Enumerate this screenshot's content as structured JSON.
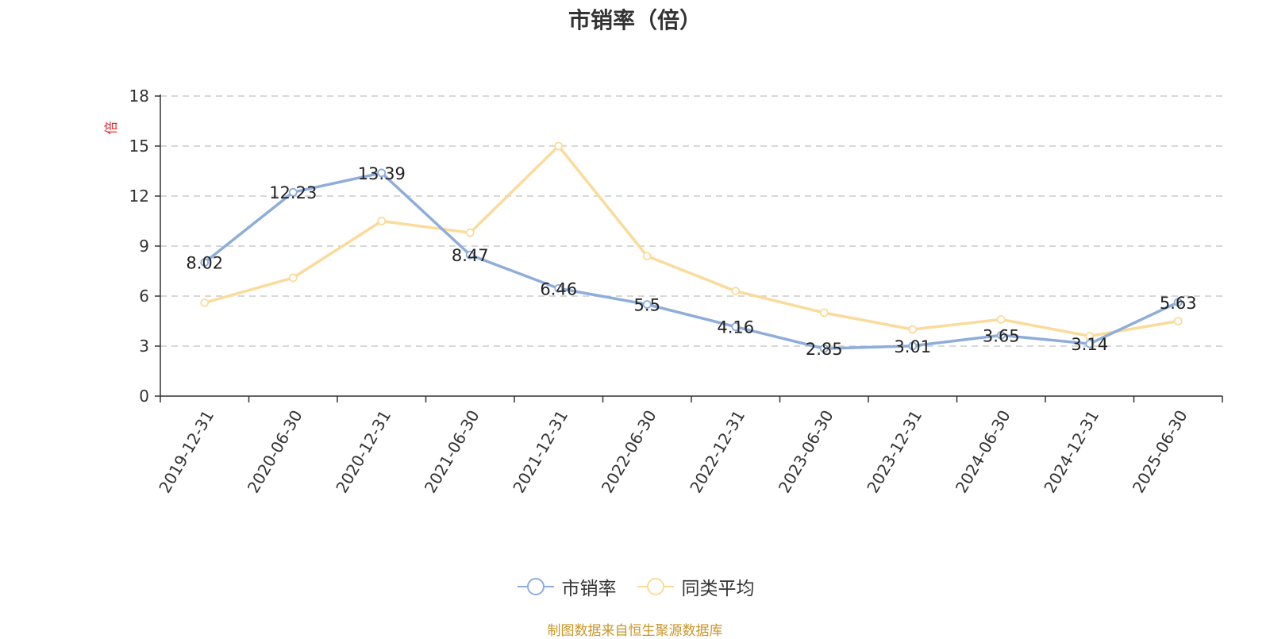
{
  "chart_data": {
    "type": "line",
    "title": "市销率（倍）",
    "ylabel": "倍",
    "ylim": [
      0,
      18
    ],
    "yticks": [
      0,
      3,
      6,
      9,
      12,
      15,
      18
    ],
    "grid": true,
    "legend_position": "bottom",
    "categories": [
      "2019-12-31",
      "2020-06-30",
      "2020-12-31",
      "2021-06-30",
      "2021-12-31",
      "2022-06-30",
      "2022-12-31",
      "2023-06-30",
      "2023-12-31",
      "2024-06-30",
      "2024-12-31",
      "2025-06-30"
    ],
    "series": [
      {
        "name": "市销率",
        "color": "#8eadd9",
        "values": [
          8.02,
          12.23,
          13.39,
          8.47,
          6.46,
          5.5,
          4.16,
          2.85,
          3.01,
          3.65,
          3.14,
          5.63
        ],
        "labels": [
          "8.02",
          "12.23",
          "13.39",
          "8.47",
          "6.46",
          "5.5",
          "4.16",
          "2.85",
          "3.01",
          "3.65",
          "3.14",
          "5.63"
        ]
      },
      {
        "name": "同类平均",
        "color": "#fbdb9b",
        "values": [
          5.6,
          7.1,
          10.5,
          9.8,
          15.0,
          8.4,
          6.3,
          5.0,
          4.0,
          4.6,
          3.6,
          4.5
        ]
      }
    ]
  },
  "source_text": "制图数据来自恒生聚源数据库",
  "colors": {
    "axis": "#333333",
    "grid": "#cccccc",
    "ylabel": "#e0262b",
    "source": "#c9962a"
  }
}
